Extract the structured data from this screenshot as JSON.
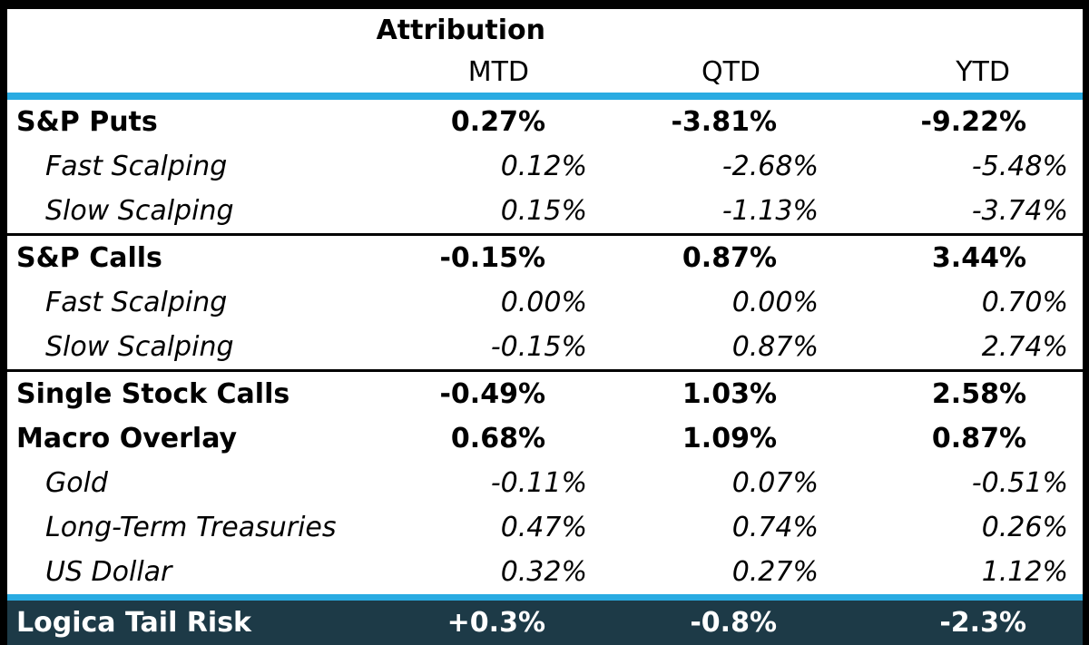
{
  "table": {
    "title": "Attribution",
    "columns": {
      "mtd": "MTD",
      "qtd": "QTD",
      "ytd": "YTD"
    },
    "rows": [
      {
        "label": "S&P Puts",
        "style": "parent",
        "mtd": "0.27%",
        "qtd": "-3.81%",
        "ytd": "-9.22%"
      },
      {
        "label": "Fast Scalping",
        "style": "child",
        "mtd": "0.12%",
        "qtd": "-2.68%",
        "ytd": "-5.48%"
      },
      {
        "label": "Slow Scalping",
        "style": "child",
        "mtd": "0.15%",
        "qtd": "-1.13%",
        "ytd": "-3.74%"
      },
      {
        "label": "S&P Calls",
        "style": "parent",
        "mtd": "-0.15%",
        "qtd": "0.87%",
        "ytd": "3.44%"
      },
      {
        "label": "Fast Scalping",
        "style": "child",
        "mtd": "0.00%",
        "qtd": "0.00%",
        "ytd": "0.70%"
      },
      {
        "label": "Slow Scalping",
        "style": "child",
        "mtd": "-0.15%",
        "qtd": "0.87%",
        "ytd": "2.74%"
      },
      {
        "label": "Single Stock Calls",
        "style": "parent",
        "mtd": "-0.49%",
        "qtd": "1.03%",
        "ytd": "2.58%"
      },
      {
        "label": "Macro Overlay",
        "style": "parent",
        "mtd": "0.68%",
        "qtd": "1.09%",
        "ytd": "0.87%"
      },
      {
        "label": "Gold",
        "style": "child",
        "mtd": "-0.11%",
        "qtd": "0.07%",
        "ytd": "-0.51%"
      },
      {
        "label": "Long-Term Treasuries",
        "style": "child",
        "mtd": "0.47%",
        "qtd": "0.74%",
        "ytd": "0.26%"
      },
      {
        "label": "US Dollar",
        "style": "child",
        "mtd": "0.32%",
        "qtd": "0.27%",
        "ytd": "1.12%"
      }
    ],
    "total": {
      "label": "Logica Tail Risk",
      "mtd": "+0.3%",
      "qtd": "-0.8%",
      "ytd": "-2.3%"
    }
  },
  "colors": {
    "accent_line": "#29abe2",
    "total_row_background": "#1d3a47",
    "border": "#000000",
    "total_row_text": "#ffffff"
  }
}
